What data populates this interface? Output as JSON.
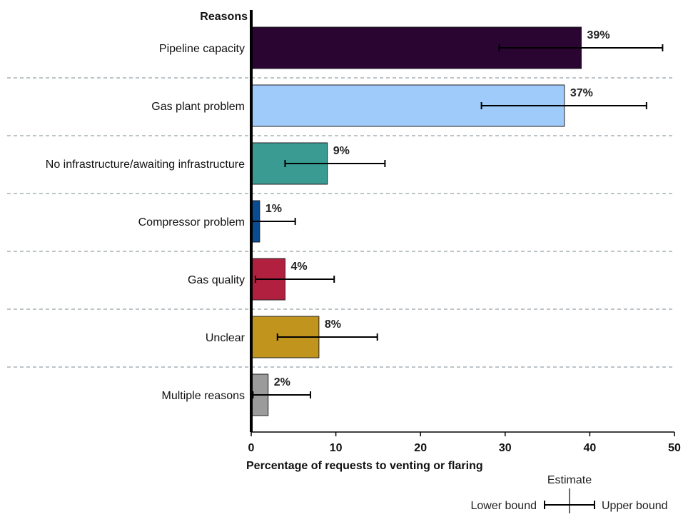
{
  "chart_data": {
    "type": "bar",
    "orientation": "horizontal",
    "category_axis_title": "Reasons",
    "xlabel": "Percentage of requests to venting or flaring",
    "xlim": [
      0,
      50
    ],
    "xticks": [
      0,
      10,
      20,
      30,
      40,
      50
    ],
    "grid": "dashed horizontal separators between categories",
    "categories": [
      "Pipeline capacity",
      "Gas plant problem",
      "No infrastructure/awaiting infrastructure",
      "Compressor problem",
      "Gas quality",
      "Unclear",
      "Multiple reasons"
    ],
    "values": [
      39,
      37,
      9,
      1,
      4,
      8,
      2
    ],
    "value_labels": [
      "39%",
      "37%",
      "9%",
      "1%",
      "4%",
      "8%",
      "2%"
    ],
    "error_bars": [
      {
        "lower": 29.3,
        "upper": 48.6
      },
      {
        "lower": 27.2,
        "upper": 46.7
      },
      {
        "lower": 4.0,
        "upper": 15.8
      },
      {
        "lower": 0.1,
        "upper": 5.2
      },
      {
        "lower": 0.5,
        "upper": 9.8
      },
      {
        "lower": 3.1,
        "upper": 14.9
      },
      {
        "lower": 0.2,
        "upper": 7.0
      }
    ],
    "colors": [
      "#2a0532",
      "#9ecbf9",
      "#3a9b93",
      "#0a4c91",
      "#b22040",
      "#c0941d",
      "#9b9b9b"
    ],
    "legend": {
      "placement": "bottom-right",
      "estimate_label": "Estimate",
      "lower_label": "Lower bound",
      "upper_label": "Upper bound"
    }
  }
}
